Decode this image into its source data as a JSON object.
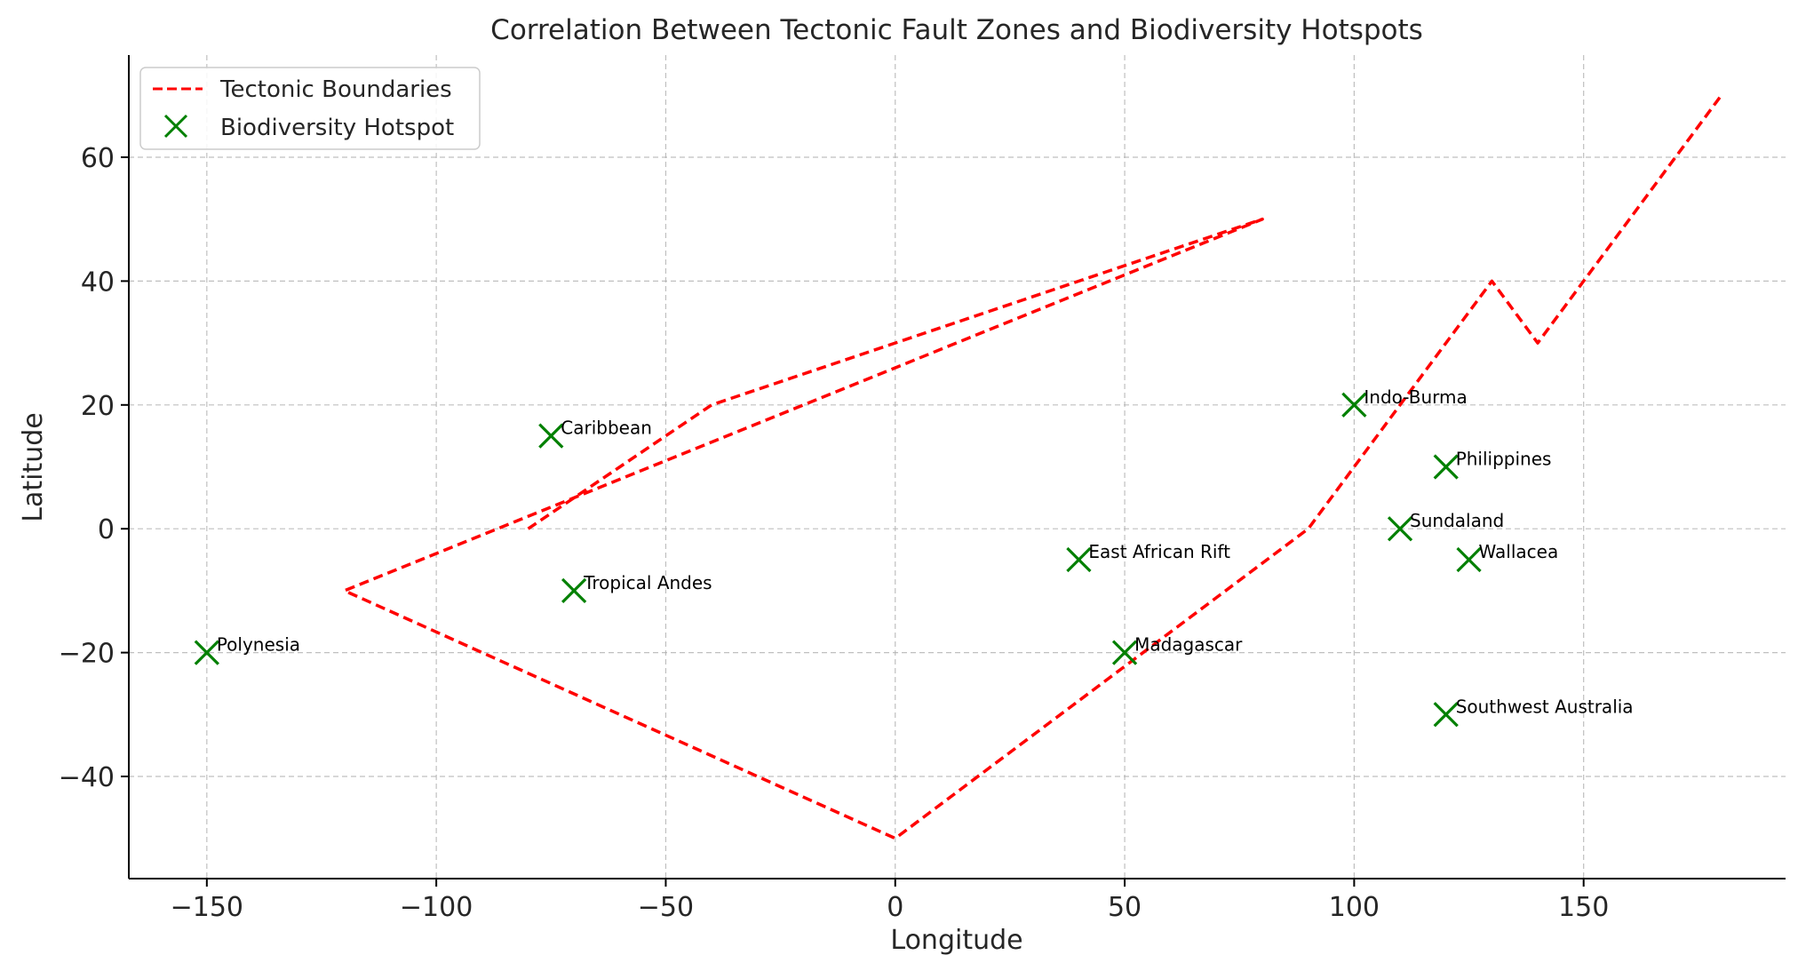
{
  "chart_data": {
    "type": "line+scatter",
    "title": "Correlation Between Tectonic Fault Zones and Biodiversity Hotspots",
    "xlabel": "Longitude",
    "ylabel": "Latitude",
    "xlim": [
      -167,
      194
    ],
    "ylim": [
      -56.5,
      76.5
    ],
    "xticks": [
      -150,
      -100,
      -50,
      0,
      50,
      100,
      150
    ],
    "yticks": [
      -40,
      -20,
      0,
      20,
      40,
      60
    ],
    "xtick_labels": [
      "−150",
      "−100",
      "−50",
      "0",
      "50",
      "100",
      "150"
    ],
    "ytick_labels": [
      "−40",
      "−20",
      "0",
      "20",
      "40",
      "60"
    ],
    "grid": true,
    "legend_position": "top-left",
    "colors": {
      "boundary": "#ff0000",
      "hotspot": "#008000"
    },
    "boundaries": {
      "name": "Tectonic Boundaries",
      "style": "dashed",
      "x": [
        -80,
        -40,
        80,
        -120,
        0,
        90,
        130,
        140,
        180
      ],
      "y": [
        0,
        20,
        50,
        -10,
        -50,
        0,
        40,
        30,
        70
      ]
    },
    "hotspots": {
      "name": "Biodiversity Hotspot",
      "marker": "x",
      "points": [
        {
          "label": "Caribbean",
          "x": -75,
          "y": 15
        },
        {
          "label": "Tropical Andes",
          "x": -70,
          "y": -10
        },
        {
          "label": "Polynesia",
          "x": -150,
          "y": -20
        },
        {
          "label": "East African Rift",
          "x": 40,
          "y": -5
        },
        {
          "label": "Madagascar",
          "x": 50,
          "y": -20
        },
        {
          "label": "Indo-Burma",
          "x": 100,
          "y": 20
        },
        {
          "label": "Philippines",
          "x": 120,
          "y": 10
        },
        {
          "label": "Sundaland",
          "x": 110,
          "y": 0
        },
        {
          "label": "Wallacea",
          "x": 125,
          "y": -5
        },
        {
          "label": "Southwest Australia",
          "x": 120,
          "y": -30
        }
      ]
    }
  }
}
